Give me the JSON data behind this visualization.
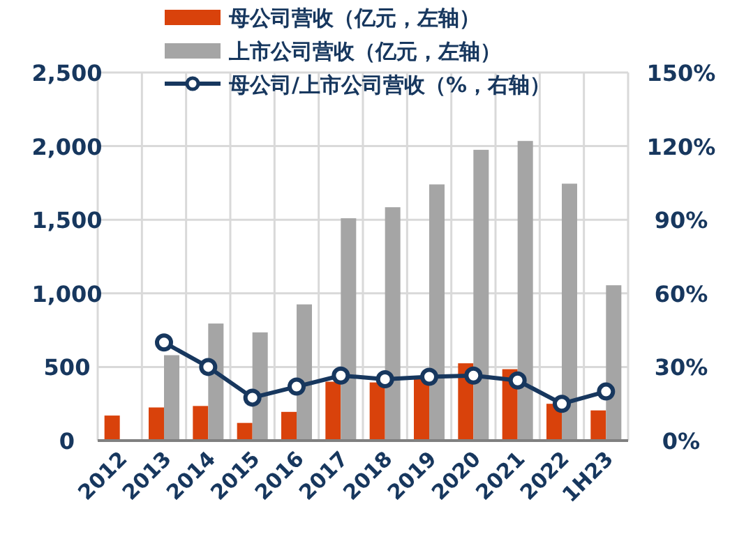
{
  "chart_data": {
    "type": "bar",
    "categories": [
      "2012",
      "2013",
      "2014",
      "2015",
      "2016",
      "2017",
      "2018",
      "2019",
      "2020",
      "2021",
      "2022",
      "1H23"
    ],
    "series": [
      {
        "name": "母公司营收（亿元，左轴）",
        "color": "#d9420b",
        "values": [
          170,
          225,
          235,
          120,
          195,
          400,
          395,
          430,
          525,
          485,
          250,
          205
        ]
      },
      {
        "name": "上市公司营收（亿元，左轴）",
        "color": "#a5a5a5",
        "values": [
          null,
          580,
          795,
          735,
          925,
          1510,
          1585,
          1740,
          1975,
          2035,
          1745,
          1055
        ]
      },
      {
        "name": "母公司/上市公司营收（%，右轴）",
        "type": "line",
        "axis": "y2",
        "color": "#17375e",
        "marker": "circle",
        "values": [
          null,
          40,
          30,
          17.5,
          22,
          26.5,
          25,
          26,
          26.5,
          24.5,
          15,
          20
        ]
      }
    ],
    "ylim": [
      0,
      2500
    ],
    "yticks": [
      {
        "value": 0,
        "label": "0"
      },
      {
        "value": 500,
        "label": "500"
      },
      {
        "value": 1000,
        "label": "1,000"
      },
      {
        "value": 1500,
        "label": "1,500"
      },
      {
        "value": 2000,
        "label": "2,000"
      },
      {
        "value": 2500,
        "label": "2,500"
      }
    ],
    "y2lim": [
      0,
      150
    ],
    "y2ticks": [
      {
        "value": 0,
        "label": "0%"
      },
      {
        "value": 30,
        "label": "30%"
      },
      {
        "value": 60,
        "label": "60%"
      },
      {
        "value": 90,
        "label": "90%"
      },
      {
        "value": 120,
        "label": "120%"
      },
      {
        "value": 150,
        "label": "150%"
      }
    ],
    "grid": true,
    "legend": "top"
  }
}
